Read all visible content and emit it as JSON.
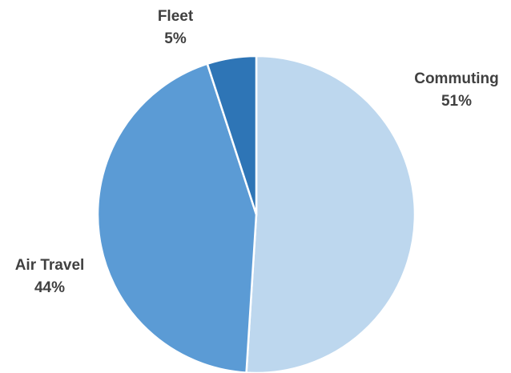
{
  "chart_data": {
    "type": "pie",
    "slices": [
      {
        "name": "Commuting",
        "value": 51,
        "label": "51%",
        "color": "#BDD7EE"
      },
      {
        "name": "Air Travel",
        "value": 44,
        "label": "44%",
        "color": "#5B9BD5"
      },
      {
        "name": "Fleet",
        "value": 5,
        "label": "5%",
        "color": "#2E75B6"
      }
    ],
    "start_angle_deg": 0,
    "direction": "clockwise",
    "slice_border_color": "#ffffff",
    "legend": "none"
  }
}
